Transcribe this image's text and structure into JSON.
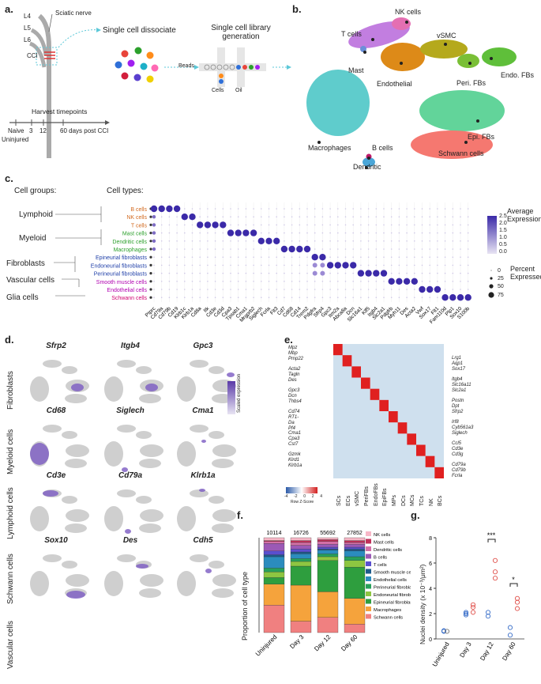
{
  "panels": {
    "a": "a.",
    "b": "b.",
    "c": "c.",
    "d": "d.",
    "e": "e.",
    "f": "f.",
    "g": "g."
  },
  "panel_a": {
    "nerves": [
      "L4",
      "L5",
      "L6"
    ],
    "sciatic": "Sciatic nerve",
    "cci": "CCI",
    "dissociate": "Single cell dissociate",
    "library_title": "Single cell library generation",
    "beads": "Beads",
    "cells": "Cells",
    "oil": "Oil",
    "harvest": "Harvest timepoints",
    "timepoints": [
      "Naive",
      "3",
      "12",
      "60 days post CCI"
    ],
    "uninjured": "Uninjured"
  },
  "panel_b": {
    "labels": [
      "NK cells",
      "T cells",
      "vSMC",
      "Mast",
      "Endothelial",
      "Peri. FBs",
      "Endo. FBs",
      "Epi. FBs",
      "Macrophages",
      "B cells",
      "Schwann cells",
      "Dendritic"
    ]
  },
  "panel_c": {
    "groups_header": "Cell groups:",
    "types_header": "Cell types:",
    "groups": [
      "Lymphoid",
      "Myeloid",
      "Fibroblasts",
      "Vascular cells",
      "Glia cells"
    ],
    "types": [
      {
        "name": "B cells",
        "color": "#d2691e"
      },
      {
        "name": "NK cells",
        "color": "#d2691e"
      },
      {
        "name": "T cells",
        "color": "#d2691e"
      },
      {
        "name": "Mast cells",
        "color": "#2ca02c"
      },
      {
        "name": "Dendritic cells",
        "color": "#2ca02c"
      },
      {
        "name": "Macrophages",
        "color": "#2ca02c"
      },
      {
        "name": "Epineurial fibroblasts",
        "color": "#1f3fa8"
      },
      {
        "name": "Endoneurial fibroblasts",
        "color": "#1f3fa8"
      },
      {
        "name": "Perineurial fibroblasts",
        "color": "#1f3fa8"
      },
      {
        "name": "Smooth muscle cells",
        "color": "#b000b0"
      },
      {
        "name": "Endothelial cells",
        "color": "#b000b0"
      },
      {
        "name": "Schwann cells",
        "color": "#d00070"
      }
    ],
    "genes": [
      "Ptprc",
      "Cd79a",
      "Cd79b",
      "Cd19",
      "Klrb1c",
      "Klrb1a",
      "Cd8a",
      "Itk",
      "Cd3e",
      "Cd3d",
      "Cpa3",
      "Tpsab1",
      "Cma1",
      "Mrgprb2",
      "Siglech",
      "Fcrla",
      "Flt3",
      "Cd7",
      "Cd68",
      "Cd14",
      "Trem2",
      "Pdgfra",
      "Sfrp4",
      "Gpc3",
      "Itm2a",
      "Abca8a",
      "Dcn",
      "Slc16a1",
      "Klf5",
      "Itgb4",
      "Slc2a1",
      "Pdgfrb",
      "Myh11",
      "Des",
      "Acta2",
      "Vwf",
      "Sox17",
      "Flt1",
      "Fam110d",
      "Plp1",
      "Sox10",
      "S100b"
    ],
    "legend_title": "Average Expression",
    "legend_ticks": [
      "2.5",
      "2.0",
      "1.5",
      "1.0",
      "0.5",
      "0.0"
    ],
    "pct_title": "Percent Expressed",
    "pct_values": [
      "0",
      "25",
      "50",
      "75"
    ]
  },
  "panel_d": {
    "genes": [
      "Sfrp2",
      "Itgb4",
      "Gpc3",
      "Cd68",
      "Siglech",
      "Cma1",
      "Cd3e",
      "Cd79a",
      "Klrb1a",
      "Sox10",
      "Des",
      "Cdh5"
    ],
    "rows": [
      "Fibroblasts",
      "Myeloid cells",
      "Lymphoid cells",
      "Schwann cells",
      "Vascular cells"
    ],
    "legend": "Scaled expression"
  },
  "panel_e": {
    "left_genes": [
      [
        "Mpz",
        "Mbp",
        "Pmp22"
      ],
      [
        "Acta2",
        "Tagln",
        "Des"
      ],
      [
        "Gpc3",
        "Dcn",
        "Thbs4"
      ],
      [
        "Cd74",
        "RT1-Da",
        "Pf4"
      ],
      [
        "Cma1",
        "Cpa3",
        "Cst7"
      ],
      [
        "Gzmk",
        "Klrd1",
        "Klrb1a"
      ]
    ],
    "right_genes": [
      [
        "Lrg1",
        "Aqp1",
        "Sox17"
      ],
      [
        "Itgb4",
        "Slc16a11",
        "Slc2a1"
      ],
      [
        "Postn",
        "Dpt",
        "Sfrp2"
      ],
      [
        "Irf8",
        "Cyb561a3",
        "Siglech"
      ],
      [
        "Ccl5",
        "Cd3e",
        "Cd3g"
      ],
      [
        "Cd79a",
        "Cd79b",
        "Fcrla"
      ]
    ],
    "columns": [
      "SCs",
      "ECs",
      "vSMC",
      "PeriFBs",
      "EndoFBs",
      "EpiFBs",
      "MPs",
      "DCs",
      "MCs",
      "TCs",
      "NK",
      "BCs"
    ],
    "scale_ticks": [
      "-4",
      "-2",
      "0",
      "2",
      "4"
    ],
    "scale_label": "Row Z-Score"
  },
  "panel_f": {
    "ylabel": "Proportion of cell type",
    "categories": [
      "Uninjured",
      "Day 3",
      "Day 12",
      "Day 60"
    ],
    "counts": [
      "10114",
      "16726",
      "55692",
      "27852"
    ],
    "chart_data": {
      "type": "bar",
      "stacked": true,
      "categories": [
        "Uninjured",
        "Day 3",
        "Day 12",
        "Day 60"
      ],
      "series": [
        {
          "name": "Schwann cells",
          "color": "#f08080",
          "values": [
            0.29,
            0.12,
            0.16,
            0.09
          ]
        },
        {
          "name": "Macrophages",
          "color": "#f5a33c",
          "values": [
            0.22,
            0.38,
            0.27,
            0.27
          ]
        },
        {
          "name": "Epineurial fibroblasts",
          "color": "#2e9e3e",
          "values": [
            0.07,
            0.2,
            0.33,
            0.33
          ]
        },
        {
          "name": "Endoneurial fibroblasts",
          "color": "#8ec641",
          "values": [
            0.06,
            0.05,
            0.04,
            0.07
          ]
        },
        {
          "name": "Perineurial fibroblasts",
          "color": "#27a05a",
          "values": [
            0.04,
            0.03,
            0.03,
            0.04
          ]
        },
        {
          "name": "Endothelial cells",
          "color": "#2b8cbe",
          "values": [
            0.12,
            0.05,
            0.04,
            0.06
          ]
        },
        {
          "name": "Smooth muscle cells",
          "color": "#1d5b8c",
          "values": [
            0.02,
            0.02,
            0.01,
            0.02
          ]
        },
        {
          "name": "T cells",
          "color": "#5a4fcf",
          "values": [
            0.04,
            0.03,
            0.02,
            0.02
          ]
        },
        {
          "name": "B cells",
          "color": "#9b59b6",
          "values": [
            0.08,
            0.04,
            0.03,
            0.03
          ]
        },
        {
          "name": "Dendritic cells",
          "color": "#d36fa6",
          "values": [
            0.02,
            0.03,
            0.03,
            0.02
          ]
        },
        {
          "name": "Mast cells",
          "color": "#c0305a",
          "values": [
            0.01,
            0.02,
            0.02,
            0.02
          ]
        },
        {
          "name": "NK cells",
          "color": "#f7b7c7",
          "values": [
            0.03,
            0.03,
            0.02,
            0.03
          ]
        }
      ],
      "ylim": [
        0,
        1
      ]
    }
  },
  "panel_g": {
    "ylabel": "Nuclei density (x 10⁻³/μm²)",
    "categories": [
      "Uninjured",
      "Day 3",
      "Day 12",
      "Day 60"
    ],
    "sig": [
      "***",
      "*"
    ],
    "yticks": [
      "0",
      "2",
      "4",
      "6",
      "8"
    ],
    "chart_data": {
      "type": "scatter",
      "ylim": [
        0,
        8
      ],
      "series": [
        {
          "name": "blue",
          "color": "#3a6fc9",
          "points": [
            [
              0,
              0.6
            ],
            [
              0,
              0.65
            ],
            [
              1,
              1.9
            ],
            [
              1,
              2.0
            ],
            [
              1,
              2.1
            ],
            [
              2,
              1.8
            ],
            [
              2,
              2.1
            ],
            [
              3,
              0.3
            ],
            [
              3,
              0.9
            ]
          ]
        },
        {
          "name": "red",
          "color": "#e0504a",
          "points": [
            [
              1,
              2.1
            ],
            [
              1,
              2.5
            ],
            [
              1,
              2.7
            ],
            [
              2,
              4.8
            ],
            [
              2,
              5.3
            ],
            [
              2,
              6.2
            ],
            [
              3,
              2.4
            ],
            [
              3,
              2.9
            ],
            [
              3,
              3.2
            ]
          ]
        },
        {
          "name": "grey",
          "color": "#777777",
          "points": [
            [
              0,
              0.6
            ]
          ]
        }
      ]
    }
  }
}
